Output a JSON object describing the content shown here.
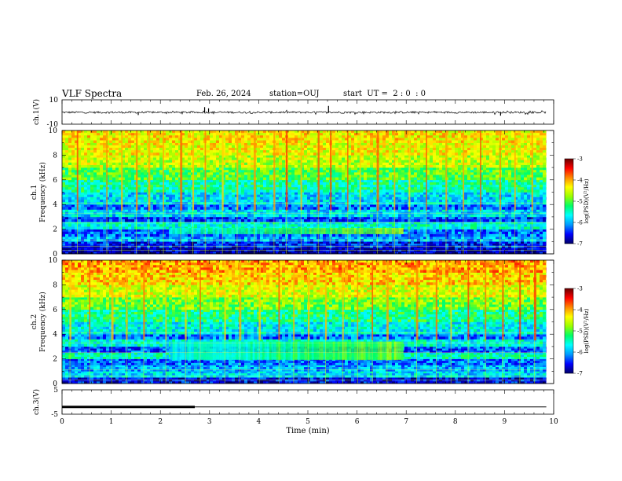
{
  "header": {
    "title": "VLF Spectra",
    "date": "Feb. 26, 2024",
    "station": "station=OUJ",
    "start": "start  UT =  2 : 0  : 0"
  },
  "colors": {
    "spec_stops": [
      "#000066",
      "#0000ff",
      "#0099ff",
      "#00ffff",
      "#00ff66",
      "#99ff00",
      "#ffff00",
      "#ff8800",
      "#ff0000",
      "#660000"
    ]
  },
  "chart_data": [
    {
      "type": "line",
      "name": "ch1-waveform",
      "ylabel": "ch.1(V)",
      "yticks": [
        "10",
        "-10"
      ],
      "ylim": [
        -10,
        10
      ],
      "xlim": [
        0,
        10
      ],
      "baseline": -0.3,
      "x": [
        0.0,
        0.2,
        0.4,
        0.6,
        0.8,
        1.0,
        1.2,
        1.4,
        1.6,
        1.8,
        2.0,
        2.2,
        2.4,
        2.6,
        2.8,
        3.0,
        3.2,
        3.4,
        3.6,
        3.8,
        4.0,
        4.2,
        4.4,
        4.6,
        4.8,
        5.0,
        5.2,
        5.4,
        5.6,
        5.8,
        6.0,
        6.2,
        6.4,
        6.6,
        6.8,
        7.0,
        7.2,
        7.4,
        7.6,
        7.8,
        8.0,
        8.2,
        8.4,
        8.6,
        8.8,
        9.0,
        9.2,
        9.4,
        9.6,
        9.8
      ],
      "y": [
        -0.5,
        0.3,
        -0.8,
        0.4,
        -0.2,
        0.6,
        -0.6,
        -2.5,
        0.2,
        -0.4,
        0.5,
        -0.7,
        0.3,
        -0.3,
        0.8,
        4.0,
        -0.5,
        0.4,
        -0.6,
        0.2,
        -0.3,
        0.5,
        -0.8,
        0.3,
        -0.2,
        0.6,
        5.0,
        -0.4,
        0.3,
        -0.6,
        0.4,
        -0.2,
        0.5,
        -0.7,
        0.2,
        -0.3,
        0.6,
        -0.4,
        0.3,
        -0.5,
        0.4,
        -0.3,
        0.2,
        -0.6,
        0.5,
        -3.0,
        0.3,
        -0.4,
        0.2,
        -0.5
      ],
      "spikes": [
        {
          "t": 1.55,
          "v": -2.5
        },
        {
          "t": 2.9,
          "v": 4.0
        },
        {
          "t": 2.98,
          "v": 3.0
        },
        {
          "t": 5.42,
          "v": 5.0
        },
        {
          "t": 8.92,
          "v": -3.0
        }
      ],
      "xmax_data": 9.85
    },
    {
      "type": "heatmap",
      "name": "ch1-spectrogram",
      "ylabel": "ch.1",
      "ylabel2": "Frequency (kHz)",
      "yticks": [
        "0",
        "2",
        "4",
        "6",
        "8",
        "10"
      ],
      "ylim": [
        0,
        10
      ],
      "xlim": [
        0,
        10
      ],
      "xmax_data": 9.85,
      "band_edges_khz": [
        0,
        0.5,
        1.0,
        1.4,
        2.0,
        2.6,
        3.0,
        3.6,
        4.0,
        5.0,
        6.0,
        7.0,
        8.0,
        9.0,
        10.0
      ],
      "band_levels": [
        -6.8,
        -6.5,
        -6.0,
        -6.2,
        -5.6,
        -6.4,
        -5.8,
        -6.2,
        -5.8,
        -5.4,
        -5.0,
        -4.6,
        -4.4,
        -4.3
      ],
      "emission": {
        "t_end": 6.9,
        "f_low": 1.6,
        "f_high": 2.1,
        "level": -5.0
      },
      "impulse_times": [
        0.3,
        0.9,
        1.2,
        1.5,
        1.75,
        2.05,
        2.4,
        2.65,
        2.9,
        3.25,
        3.55,
        3.9,
        4.3,
        4.55,
        4.85,
        5.2,
        5.45,
        5.8,
        6.05,
        6.4,
        6.75,
        7.05,
        7.4,
        7.8,
        8.15,
        8.5,
        8.9,
        9.2,
        9.55
      ],
      "colorbar": {
        "label": "log(PSD)(V²/Hz)",
        "ticks": [
          "-3",
          "-4",
          "-5",
          "-6",
          "-7"
        ],
        "range": [
          -7,
          -3
        ]
      }
    },
    {
      "type": "heatmap",
      "name": "ch2-spectrogram",
      "ylabel": "ch.2",
      "ylabel2": "Frequency (kHz)",
      "yticks": [
        "0",
        "2",
        "4",
        "6",
        "8",
        "10"
      ],
      "ylim": [
        0,
        10
      ],
      "xlim": [
        0,
        10
      ],
      "xmax_data": 9.85,
      "band_edges_khz": [
        0,
        0.5,
        1.0,
        1.5,
        2.0,
        2.5,
        3.0,
        3.6,
        4.0,
        5.0,
        6.0,
        7.0,
        8.0,
        9.0,
        10.0
      ],
      "band_levels": [
        -6.6,
        -5.8,
        -6.0,
        -6.2,
        -5.5,
        -6.3,
        -5.6,
        -6.2,
        -5.7,
        -5.3,
        -4.9,
        -4.5,
        -4.2,
        -4.0
      ],
      "emission": {
        "t_end": 6.9,
        "f_low": 1.9,
        "f_high": 3.4,
        "level": -5.1
      },
      "impulse_times": [
        0.15,
        0.55,
        1.0,
        1.3,
        1.65,
        2.1,
        2.5,
        2.8,
        3.3,
        3.6,
        4.0,
        4.4,
        4.7,
        5.0,
        5.35,
        5.7,
        6.0,
        6.3,
        6.6,
        7.2,
        7.6,
        7.9,
        8.25,
        8.6,
        8.95,
        9.3,
        9.6
      ],
      "colorbar": {
        "label": "log(PSD)(V²/Hz)",
        "ticks": [
          "-3",
          "-4",
          "-5",
          "-6",
          "-7"
        ],
        "range": [
          -7,
          -3
        ]
      }
    },
    {
      "type": "line",
      "name": "ch3-level",
      "ylabel": "ch.3(V)",
      "yticks": [
        "5",
        "-5"
      ],
      "ylim": [
        -5,
        5
      ],
      "xlim": [
        0,
        10
      ],
      "x": [
        0,
        2.7,
        2.7,
        9.85
      ],
      "y": [
        -2.0,
        -2.0,
        -2.0,
        -2.0
      ],
      "thick_until": 2.7
    }
  ],
  "xaxis": {
    "label": "Time (min)",
    "ticks": [
      "0",
      "1",
      "2",
      "3",
      "4",
      "5",
      "6",
      "7",
      "8",
      "9",
      "10"
    ]
  }
}
